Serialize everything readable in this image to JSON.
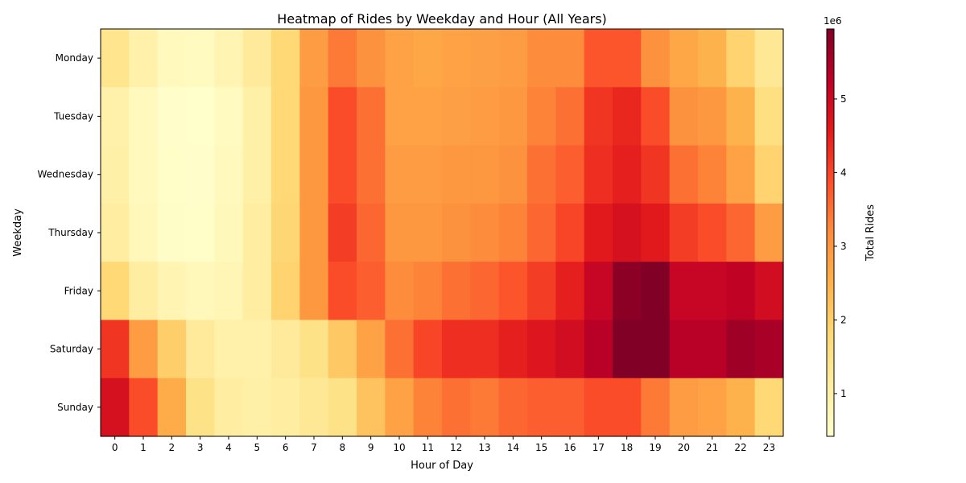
{
  "chart_data": {
    "type": "heatmap",
    "title": "Heatmap of Rides by Weekday and Hour (All Years)",
    "xlabel": "Hour of Day",
    "ylabel": "Weekday",
    "x_categories": [
      "0",
      "1",
      "2",
      "3",
      "4",
      "5",
      "6",
      "7",
      "8",
      "9",
      "10",
      "11",
      "12",
      "13",
      "14",
      "15",
      "16",
      "17",
      "18",
      "19",
      "20",
      "21",
      "22",
      "23"
    ],
    "y_categories": [
      "Monday",
      "Tuesday",
      "Wednesday",
      "Thursday",
      "Friday",
      "Saturday",
      "Sunday"
    ],
    "values": [
      [
        1.4,
        0.95,
        0.65,
        0.62,
        0.85,
        1.2,
        1.8,
        2.9,
        3.4,
        3.1,
        2.8,
        2.7,
        2.8,
        2.85,
        2.9,
        3.2,
        3.2,
        3.8,
        3.8,
        3.1,
        2.7,
        2.5,
        1.9,
        1.3
      ],
      [
        0.95,
        0.65,
        0.45,
        0.42,
        0.62,
        0.98,
        1.8,
        3.0,
        3.9,
        3.5,
        2.8,
        2.8,
        2.85,
        2.9,
        3.0,
        3.3,
        3.5,
        4.2,
        4.4,
        3.9,
        3.1,
        3.0,
        2.5,
        1.6
      ],
      [
        1.0,
        0.65,
        0.48,
        0.45,
        0.65,
        1.0,
        1.8,
        3.0,
        3.9,
        3.5,
        2.9,
        2.9,
        3.0,
        3.0,
        3.1,
        3.5,
        3.7,
        4.3,
        4.5,
        4.2,
        3.5,
        3.3,
        2.8,
        1.9
      ],
      [
        1.1,
        0.7,
        0.5,
        0.47,
        0.68,
        1.1,
        1.85,
        3.0,
        4.1,
        3.6,
        3.0,
        3.0,
        3.1,
        3.2,
        3.3,
        3.6,
        4.0,
        4.6,
        4.8,
        4.6,
        4.1,
        3.9,
        3.6,
        2.9
      ],
      [
        1.8,
        1.1,
        0.85,
        0.7,
        0.8,
        1.1,
        1.9,
        3.0,
        3.9,
        3.7,
        3.2,
        3.3,
        3.5,
        3.6,
        3.8,
        4.1,
        4.5,
        5.1,
        5.8,
        5.95,
        5.1,
        5.1,
        5.2,
        4.9
      ],
      [
        4.2,
        2.9,
        2.0,
        1.2,
        0.95,
        0.95,
        1.2,
        1.5,
        2.1,
        2.8,
        3.5,
        4.0,
        4.3,
        4.3,
        4.5,
        4.7,
        4.9,
        5.3,
        5.95,
        5.95,
        5.3,
        5.3,
        5.6,
        5.5
      ],
      [
        4.8,
        3.9,
        2.6,
        1.5,
        1.1,
        1.0,
        1.1,
        1.3,
        1.5,
        2.2,
        2.8,
        3.3,
        3.5,
        3.4,
        3.6,
        3.7,
        3.7,
        3.9,
        3.9,
        3.4,
        2.9,
        2.8,
        2.5,
        1.8
      ]
    ],
    "vmin": 0.42,
    "vmax": 5.95,
    "colormap": "YlOrRd",
    "colorbar": {
      "label": "Total Rides",
      "multiplier": "1e6",
      "ticks": [
        1,
        2,
        3,
        4,
        5
      ]
    },
    "grid": false
  }
}
